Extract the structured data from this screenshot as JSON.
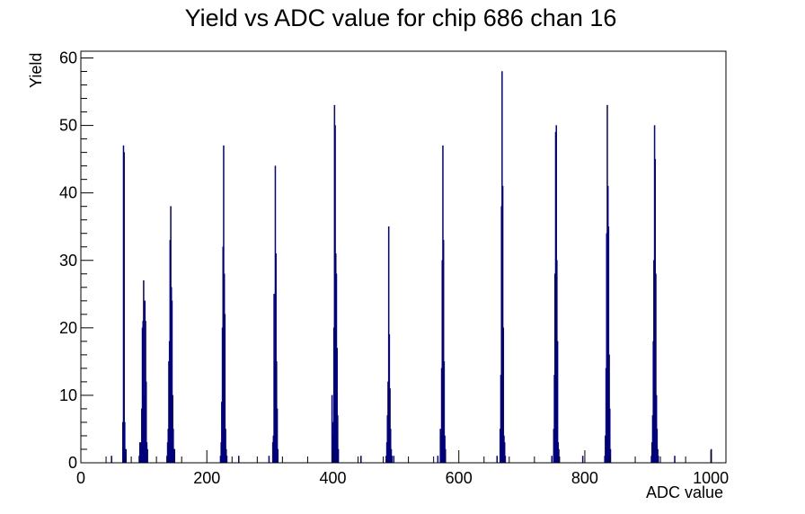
{
  "chart_data": {
    "type": "bar",
    "title": "Yield vs ADC value for chip 686 chan 16",
    "xlabel": "ADC value",
    "ylabel": "Yield",
    "xlim": [
      0,
      1024
    ],
    "ylim": [
      0,
      61
    ],
    "x_ticks": [
      "0",
      "200",
      "400",
      "600",
      "800",
      "1000"
    ],
    "y_ticks": [
      "0",
      "10",
      "20",
      "30",
      "40",
      "50",
      "60"
    ],
    "x_tick_values": [
      0,
      200,
      400,
      600,
      800,
      1000
    ],
    "y_tick_values": [
      0,
      10,
      20,
      30,
      40,
      50,
      60
    ],
    "grid": false,
    "color": "#00007f",
    "series": [
      {
        "bins": [
          [
            48,
            1
          ],
          [
            66,
            6
          ],
          [
            67,
            47
          ],
          [
            68,
            46
          ],
          [
            69,
            6
          ],
          [
            70,
            1
          ],
          [
            71,
            2
          ],
          [
            92,
            1
          ],
          [
            93,
            3
          ],
          [
            94,
            2
          ],
          [
            95,
            3
          ],
          [
            96,
            8
          ],
          [
            97,
            20
          ],
          [
            98,
            21
          ],
          [
            99,
            27
          ],
          [
            100,
            10
          ],
          [
            101,
            24
          ],
          [
            102,
            21
          ],
          [
            103,
            12
          ],
          [
            104,
            3
          ],
          [
            105,
            2
          ],
          [
            136,
            1
          ],
          [
            137,
            3
          ],
          [
            138,
            5
          ],
          [
            139,
            15
          ],
          [
            140,
            18
          ],
          [
            141,
            33
          ],
          [
            142,
            38
          ],
          [
            143,
            26
          ],
          [
            144,
            24
          ],
          [
            145,
            10
          ],
          [
            146,
            5
          ],
          [
            147,
            2
          ],
          [
            148,
            2
          ],
          [
            221,
            1
          ],
          [
            222,
            3
          ],
          [
            223,
            9
          ],
          [
            224,
            20
          ],
          [
            225,
            32
          ],
          [
            226,
            47
          ],
          [
            227,
            28
          ],
          [
            228,
            22
          ],
          [
            229,
            5
          ],
          [
            230,
            2
          ],
          [
            231,
            1
          ],
          [
            250,
            1
          ],
          [
            298,
            1
          ],
          [
            304,
            3
          ],
          [
            305,
            4
          ],
          [
            306,
            25
          ],
          [
            307,
            15
          ],
          [
            308,
            44
          ],
          [
            309,
            31
          ],
          [
            310,
            15
          ],
          [
            311,
            8
          ],
          [
            312,
            2
          ],
          [
            398,
            10
          ],
          [
            399,
            4
          ],
          [
            400,
            6
          ],
          [
            401,
            20
          ],
          [
            402,
            53
          ],
          [
            403,
            50
          ],
          [
            404,
            31
          ],
          [
            405,
            28
          ],
          [
            406,
            17
          ],
          [
            407,
            7
          ],
          [
            408,
            2
          ],
          [
            444,
            1
          ],
          [
            484,
            1
          ],
          [
            485,
            3
          ],
          [
            486,
            7
          ],
          [
            487,
            12
          ],
          [
            488,
            35
          ],
          [
            489,
            19
          ],
          [
            490,
            11
          ],
          [
            491,
            5
          ],
          [
            492,
            2
          ],
          [
            493,
            1
          ],
          [
            496,
            1
          ],
          [
            566,
            1
          ],
          [
            570,
            5
          ],
          [
            571,
            4
          ],
          [
            572,
            14
          ],
          [
            573,
            30
          ],
          [
            574,
            47
          ],
          [
            575,
            33
          ],
          [
            576,
            15
          ],
          [
            577,
            4
          ],
          [
            578,
            2
          ],
          [
            660,
            1
          ],
          [
            665,
            5
          ],
          [
            666,
            13
          ],
          [
            667,
            38
          ],
          [
            668,
            58
          ],
          [
            669,
            41
          ],
          [
            670,
            20
          ],
          [
            671,
            4
          ],
          [
            672,
            3
          ],
          [
            673,
            1
          ],
          [
            747,
            1
          ],
          [
            750,
            5
          ],
          [
            751,
            13
          ],
          [
            752,
            28
          ],
          [
            753,
            49
          ],
          [
            754,
            50
          ],
          [
            755,
            30
          ],
          [
            756,
            18
          ],
          [
            757,
            3
          ],
          [
            758,
            2
          ],
          [
            796,
            1
          ],
          [
            831,
            1
          ],
          [
            832,
            4
          ],
          [
            833,
            14
          ],
          [
            834,
            34
          ],
          [
            835,
            53
          ],
          [
            836,
            41
          ],
          [
            837,
            35
          ],
          [
            838,
            16
          ],
          [
            839,
            8
          ],
          [
            840,
            2
          ],
          [
            905,
            1
          ],
          [
            906,
            3
          ],
          [
            907,
            7
          ],
          [
            908,
            18
          ],
          [
            909,
            30
          ],
          [
            910,
            50
          ],
          [
            911,
            45
          ],
          [
            912,
            28
          ],
          [
            913,
            10
          ],
          [
            914,
            5
          ],
          [
            915,
            2
          ],
          [
            916,
            1
          ],
          [
            942,
            1
          ],
          [
            1000,
            2
          ]
        ]
      }
    ]
  }
}
